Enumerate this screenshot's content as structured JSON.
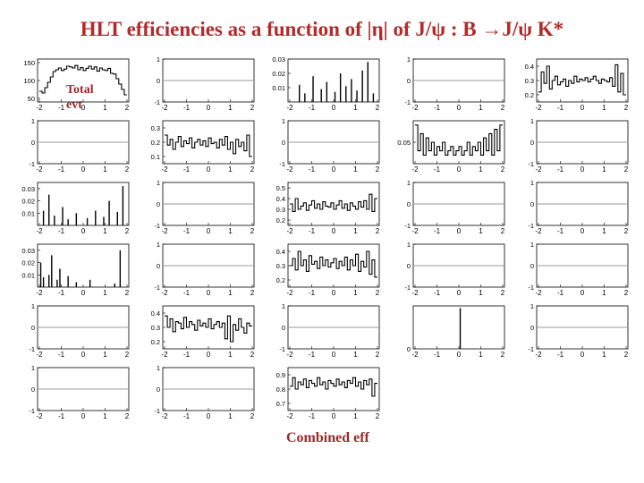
{
  "title": "HLT efficiencies as a function of |η| of J/ψ : B →J/ψ K*",
  "labels": {
    "total": "Total evt",
    "combined": "Combined eff"
  },
  "colors": {
    "title": "#b22a2a",
    "caption": "#9b2a2a",
    "trace": "#000000",
    "zero_line": "#999999"
  },
  "chart_data": {
    "type": "line",
    "grid": "6 x 6 small multiples, 36 panels (row-major); mostly histograms/line traces in black",
    "x_ticks": [
      "-2",
      "-1",
      "0",
      "1",
      "2"
    ],
    "xlim": [
      -2,
      2
    ],
    "panels": [
      {
        "kind": "hist",
        "ylim": [
          40,
          160
        ],
        "yticks": [
          "150",
          "100",
          "50"
        ],
        "values": [
          70,
          65,
          80,
          95,
          110,
          125,
          130,
          135,
          128,
          132,
          140,
          138,
          135,
          142,
          130,
          136,
          128,
          134,
          140,
          132,
          138,
          126,
          135,
          130,
          128,
          134,
          120,
          118,
          105,
          90,
          75,
          60
        ]
      },
      {
        "kind": "flat",
        "ylim": [
          -1,
          1
        ],
        "yticks": [
          "1",
          "0",
          "-1"
        ]
      },
      {
        "kind": "spikes",
        "ylim": [
          0,
          0.03
        ],
        "yticks": [
          "0.03",
          "0.02",
          "0.01"
        ],
        "values": [
          0,
          0,
          0,
          0.012,
          0,
          0.006,
          0,
          0,
          0.018,
          0,
          0,
          0.009,
          0,
          0.014,
          0,
          0,
          0.007,
          0,
          0.02,
          0,
          0.011,
          0,
          0.016,
          0,
          0.008,
          0,
          0.022,
          0,
          0.028,
          0,
          0.006,
          0
        ]
      },
      {
        "kind": "flat",
        "ylim": [
          -1,
          1
        ],
        "yticks": [
          "1",
          "0",
          "-1"
        ]
      },
      {
        "kind": "noisy",
        "ylim": [
          0.15,
          0.45
        ],
        "yticks": [
          "0.4",
          "0.3",
          "0.2"
        ],
        "values": [
          0.22,
          0.36,
          0.28,
          0.4,
          0.24,
          0.3,
          0.33,
          0.27,
          0.29,
          0.31,
          0.26,
          0.3,
          0.28,
          0.33,
          0.29,
          0.31,
          0.3,
          0.32,
          0.29,
          0.31,
          0.33,
          0.3,
          0.28,
          0.31,
          0.3,
          0.29,
          0.32,
          0.26,
          0.41,
          0.22,
          0.35,
          0.2
        ]
      },
      {
        "kind": "flat",
        "ylim": [
          -1,
          1
        ],
        "yticks": [
          "1",
          "0",
          "-1"
        ]
      },
      {
        "kind": "flat",
        "ylim": [
          -1,
          1
        ],
        "yticks": [
          "1",
          "0",
          "-1"
        ]
      },
      {
        "kind": "noisy",
        "ylim": [
          0.05,
          0.35
        ],
        "yticks": [
          "0.3",
          "0.2",
          "0.1"
        ],
        "values": [
          0.25,
          0.18,
          0.22,
          0.15,
          0.2,
          0.24,
          0.17,
          0.21,
          0.19,
          0.23,
          0.16,
          0.2,
          0.22,
          0.18,
          0.21,
          0.17,
          0.23,
          0.19,
          0.2,
          0.16,
          0.22,
          0.18,
          0.24,
          0.15,
          0.2,
          0.12,
          0.22,
          0.17,
          0.2,
          0.14,
          0.25,
          0.1
        ]
      },
      {
        "kind": "flat",
        "ylim": [
          -1,
          1
        ],
        "yticks": [
          "1",
          "0",
          "-1"
        ]
      },
      {
        "kind": "noisy",
        "ylim": [
          0,
          0.1
        ],
        "yticks": [
          "0.05"
        ],
        "values": [
          0.09,
          0.03,
          0.07,
          0.02,
          0.06,
          0.03,
          0.05,
          0.02,
          0.04,
          0.03,
          0.05,
          0.02,
          0.03,
          0.04,
          0.02,
          0.03,
          0.04,
          0.02,
          0.03,
          0.05,
          0.02,
          0.04,
          0.03,
          0.05,
          0.02,
          0.06,
          0.03,
          0.07,
          0.02,
          0.08,
          0.03,
          0.09
        ]
      },
      {
        "kind": "flat",
        "ylim": [
          -1,
          1
        ],
        "yticks": [
          "1",
          "0",
          "-1"
        ]
      },
      {
        "kind": "flat",
        "ylim": [
          -1,
          1
        ],
        "yticks": [
          "1",
          "0",
          "-1"
        ]
      },
      {
        "kind": "spikes",
        "ylim": [
          0,
          0.035
        ],
        "yticks": [
          "0.03",
          "0.02",
          "0.01"
        ],
        "values": [
          0,
          0.012,
          0,
          0.025,
          0,
          0.008,
          0,
          0,
          0.015,
          0,
          0.005,
          0,
          0,
          0.01,
          0,
          0,
          0,
          0.006,
          0,
          0,
          0.012,
          0,
          0,
          0.007,
          0,
          0.02,
          0,
          0,
          0.011,
          0,
          0.032,
          0
        ]
      },
      {
        "kind": "flat",
        "ylim": [
          -1,
          1
        ],
        "yticks": [
          "1",
          "0",
          "-1"
        ]
      },
      {
        "kind": "noisy",
        "ylim": [
          0.15,
          0.55
        ],
        "yticks": [
          "0.5",
          "0.4",
          "0.3",
          "0.2"
        ],
        "values": [
          0.35,
          0.28,
          0.4,
          0.3,
          0.33,
          0.36,
          0.29,
          0.34,
          0.38,
          0.31,
          0.35,
          0.3,
          0.37,
          0.33,
          0.32,
          0.36,
          0.3,
          0.34,
          0.38,
          0.31,
          0.35,
          0.29,
          0.36,
          0.33,
          0.3,
          0.37,
          0.32,
          0.38,
          0.3,
          0.44,
          0.28,
          0.4
        ]
      },
      {
        "kind": "flat",
        "ylim": [
          -1,
          1
        ],
        "yticks": [
          "1",
          "0",
          "-1"
        ]
      },
      {
        "kind": "flat",
        "ylim": [
          -1,
          1
        ],
        "yticks": [
          "1",
          "0",
          "-1"
        ]
      },
      {
        "kind": "spikes",
        "ylim": [
          0,
          0.1
        ],
        "yticks": [
          "0.05"
        ],
        "values": [
          0,
          0,
          0,
          0,
          0,
          0,
          0,
          0,
          0,
          0,
          0,
          0,
          0,
          0,
          0,
          0,
          0,
          0,
          0,
          0,
          0,
          0,
          0,
          0,
          0,
          0,
          0,
          0,
          0,
          0,
          0,
          0
        ]
      },
      {
        "kind": "spikes",
        "ylim": [
          0,
          0.035
        ],
        "yticks": [
          "0.03",
          "0.02",
          "0.01"
        ],
        "values": [
          0.02,
          0.008,
          0,
          0.01,
          0.026,
          0,
          0.006,
          0.015,
          0,
          0,
          0.009,
          0,
          0,
          0.004,
          0,
          0,
          0,
          0,
          0.006,
          0,
          0,
          0,
          0,
          0,
          0,
          0,
          0,
          0.003,
          0,
          0.03,
          0,
          0
        ]
      },
      {
        "kind": "flat",
        "ylim": [
          -1,
          1
        ],
        "yticks": [
          "1",
          "0",
          "-1"
        ]
      },
      {
        "kind": "noisy",
        "ylim": [
          0.15,
          0.45
        ],
        "yticks": [
          "0.4",
          "0.3",
          "0.2"
        ],
        "values": [
          0.3,
          0.35,
          0.27,
          0.4,
          0.3,
          0.34,
          0.26,
          0.37,
          0.31,
          0.33,
          0.28,
          0.36,
          0.3,
          0.34,
          0.29,
          0.32,
          0.35,
          0.28,
          0.33,
          0.3,
          0.36,
          0.27,
          0.34,
          0.3,
          0.38,
          0.26,
          0.33,
          0.29,
          0.4,
          0.24,
          0.34,
          0.22
        ]
      },
      {
        "kind": "flat",
        "ylim": [
          -1,
          1
        ],
        "yticks": [
          "1",
          "0",
          "-1"
        ]
      },
      {
        "kind": "flat",
        "ylim": [
          -1,
          1
        ],
        "yticks": [
          "1",
          "0",
          "-1"
        ]
      },
      {
        "kind": "spikes",
        "ylim": [
          0,
          1
        ],
        "yticks": [],
        "values": [
          0,
          0,
          0,
          0,
          0,
          0,
          0,
          0,
          0,
          0,
          0,
          0,
          0,
          0,
          0,
          0,
          0,
          0,
          0,
          0,
          0.9,
          0,
          0,
          0,
          0.9,
          0,
          0,
          0,
          0,
          0,
          0,
          0
        ]
      },
      {
        "kind": "flat",
        "ylim": [
          -1,
          1
        ],
        "yticks": [
          "1",
          "0",
          "-1"
        ]
      },
      {
        "kind": "noisy",
        "ylim": [
          0.15,
          0.45
        ],
        "yticks": [
          "0.4",
          "0.3",
          "0.2"
        ],
        "values": [
          0.38,
          0.3,
          0.36,
          0.27,
          0.34,
          0.33,
          0.29,
          0.37,
          0.3,
          0.34,
          0.32,
          0.28,
          0.35,
          0.31,
          0.33,
          0.3,
          0.36,
          0.29,
          0.32,
          0.34,
          0.3,
          0.33,
          0.22,
          0.38,
          0.2,
          0.32,
          0.28,
          0.36,
          0.3,
          0.26,
          0.33,
          0.31
        ]
      },
      {
        "kind": "flat",
        "ylim": [
          -1,
          1
        ],
        "yticks": [
          "1",
          "0",
          "-1"
        ]
      },
      {
        "kind": "spikes",
        "ylim": [
          0,
          1
        ],
        "yticks": [
          "0"
        ],
        "values": [
          0,
          0,
          0,
          0,
          0,
          0,
          0,
          0,
          0,
          0,
          0,
          0,
          0,
          0,
          0,
          0,
          0.95,
          0,
          0,
          0,
          0,
          0,
          0,
          0,
          0,
          0,
          0,
          0,
          0,
          0,
          0,
          0
        ]
      },
      {
        "kind": "flat",
        "ylim": [
          -1,
          1
        ],
        "yticks": [
          "1",
          "0",
          "-1"
        ]
      },
      {
        "kind": "flat",
        "ylim": [
          -1,
          1
        ],
        "yticks": [
          "1",
          "0",
          "-1"
        ]
      },
      {
        "kind": "flat",
        "ylim": [
          -1,
          1
        ],
        "yticks": [
          "1",
          "0",
          "-1"
        ]
      },
      {
        "kind": "flat",
        "ylim": [
          -1,
          1
        ],
        "yticks": [
          "1",
          "0",
          "-1"
        ]
      },
      {
        "kind": "noisy",
        "ylim": [
          0.65,
          0.95
        ],
        "yticks": [
          "0.9",
          "0.8",
          "0.7"
        ],
        "values": [
          0.82,
          0.88,
          0.8,
          0.85,
          0.83,
          0.87,
          0.81,
          0.86,
          0.84,
          0.82,
          0.88,
          0.83,
          0.85,
          0.8,
          0.86,
          0.84,
          0.82,
          0.87,
          0.83,
          0.85,
          0.81,
          0.86,
          0.84,
          0.88,
          0.82,
          0.85,
          0.8,
          0.86,
          0.83,
          0.87,
          0.75,
          0.84
        ]
      },
      {
        "kind": "none"
      },
      {
        "kind": "none"
      },
      {
        "kind": "none"
      }
    ]
  }
}
